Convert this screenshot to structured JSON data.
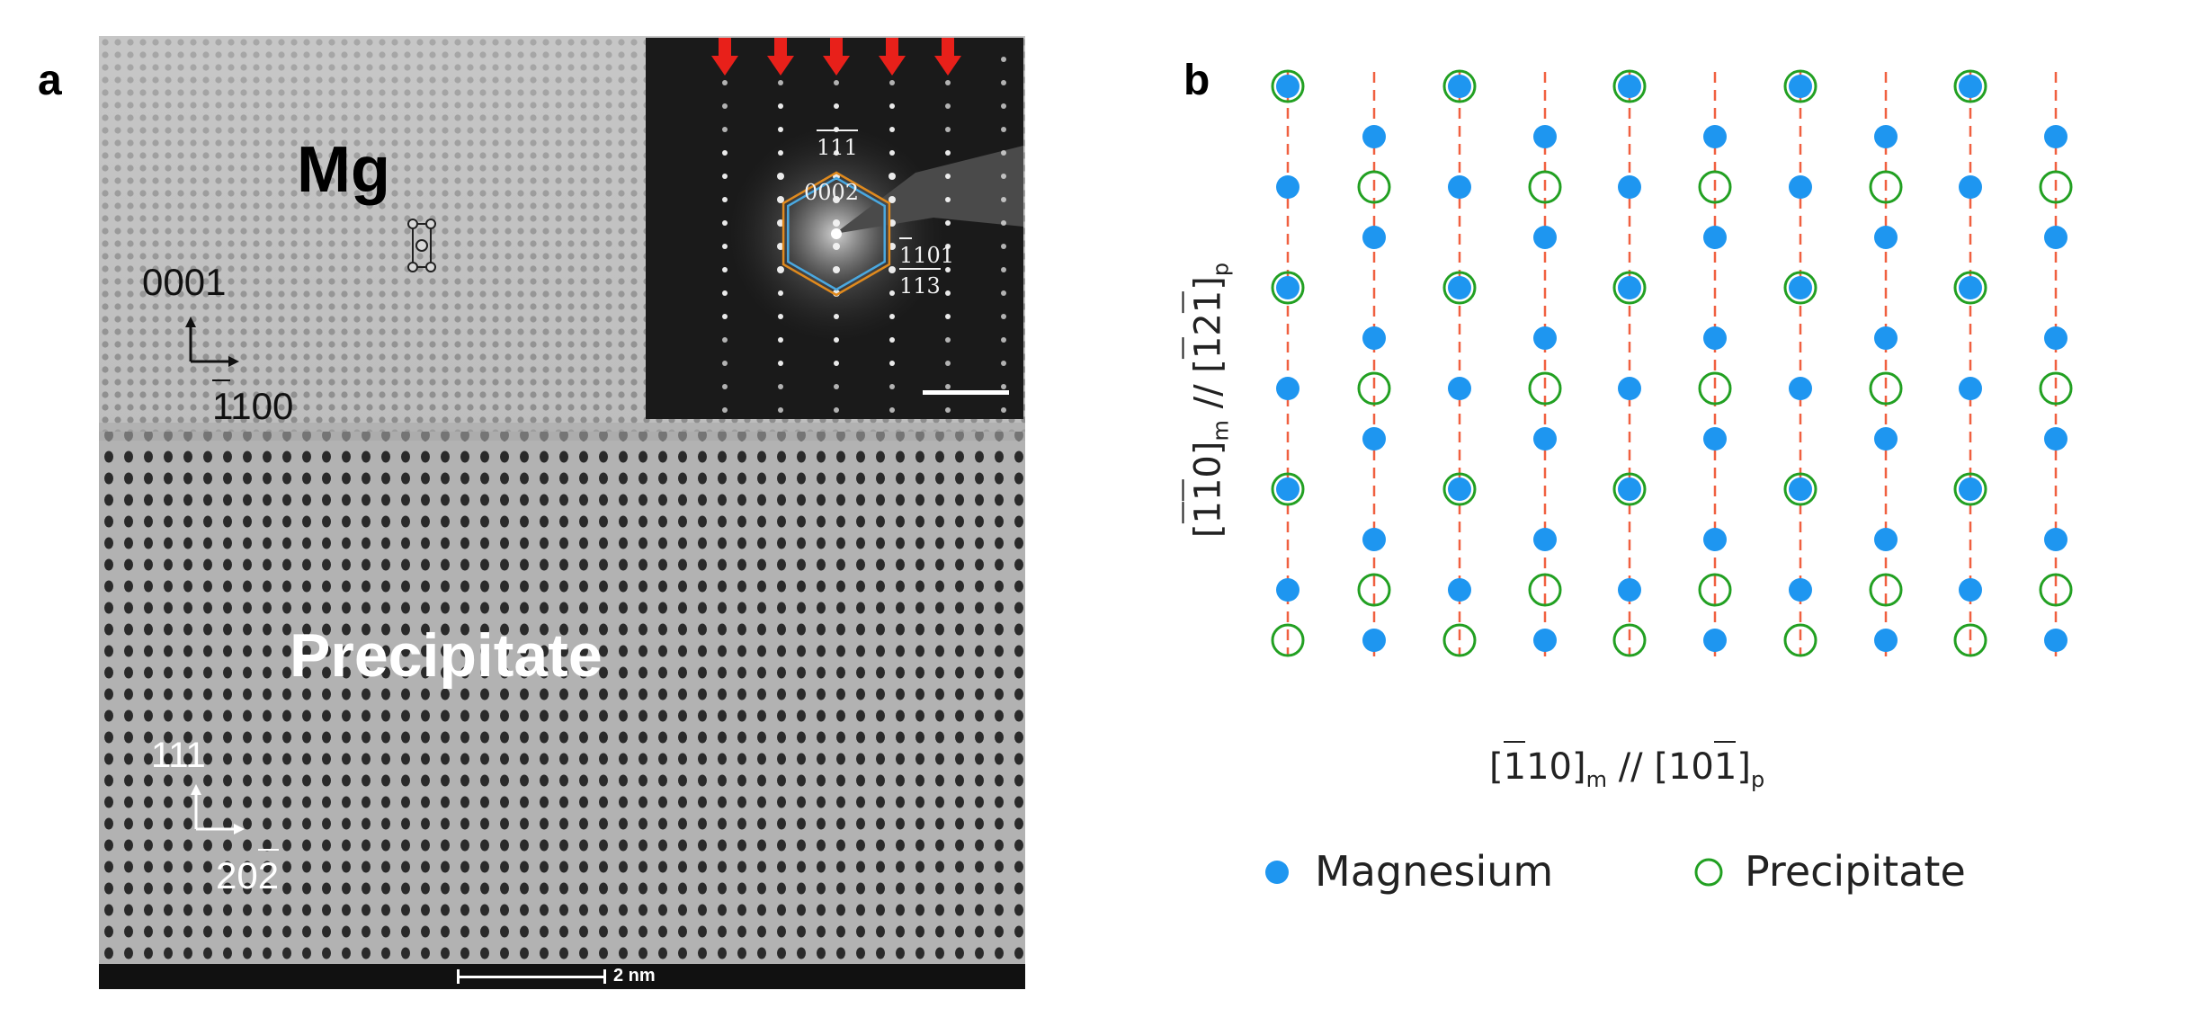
{
  "panel_a": {
    "letter": "a",
    "matrix_label": "Mg",
    "precipitate_label": "Precipitate",
    "mg_axis_vertical": "0001",
    "mg_axis_horizontal": "1100",
    "mg_axis_horizontal_overbar": "1",
    "ppt_axis_vertical": "111",
    "ppt_axis_horizontal": "202",
    "ppt_axis_horizontal_overbar": "2",
    "scale_label": "2 nm",
    "inset": {
      "spot_label_111": "111",
      "spot_label_0002": "0002",
      "spot_label_1101": "1101",
      "spot_label_113": "113",
      "arrow_count": 5,
      "arrow_color": "#e8201a",
      "hexagon_color": "#e08a1e",
      "inner_hexagon_color": "#4aa8e0"
    }
  },
  "panel_b": {
    "letter": "b",
    "y_axis_label": {
      "m_part": "[110]",
      "m_sub": "m",
      "sep": "//",
      "p_part": "[121]",
      "p_sub": "p"
    },
    "x_axis_label": {
      "m_part": "[110]",
      "m_sub": "m",
      "sep": "//",
      "p_part": "[101]",
      "p_sub": "p"
    },
    "legend": [
      {
        "label": "Magnesium",
        "marker": "filled-circle",
        "color": "#1e96f0"
      },
      {
        "label": "Precipitate",
        "marker": "open-circle",
        "color": "#22a022"
      }
    ],
    "line_color": "#f06040"
  }
}
